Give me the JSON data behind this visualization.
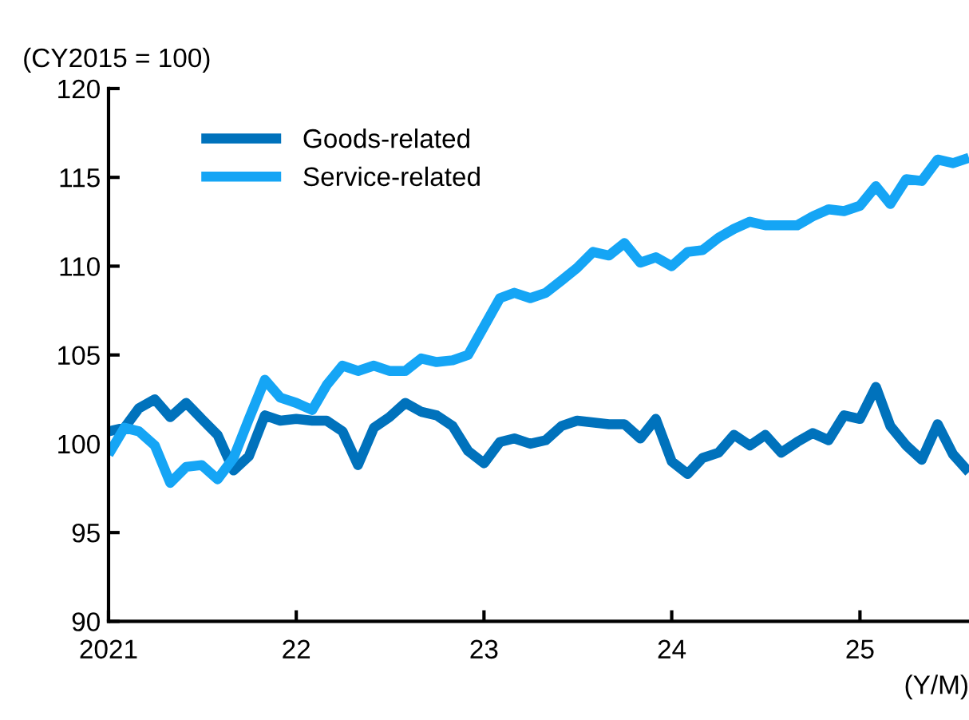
{
  "chart_data": {
    "type": "line",
    "xlabel": "(Y/M)",
    "ylabel": "(CY2015 = 100)",
    "x": [
      "2021-01",
      "2021-02",
      "2021-03",
      "2021-04",
      "2021-05",
      "2021-06",
      "2021-07",
      "2021-08",
      "2021-09",
      "2021-10",
      "2021-11",
      "2021-12",
      "2022-01",
      "2022-02",
      "2022-03",
      "2022-04",
      "2022-05",
      "2022-06",
      "2022-07",
      "2022-08",
      "2022-09",
      "2022-10",
      "2022-11",
      "2022-12",
      "2023-01",
      "2023-02",
      "2023-03",
      "2023-04",
      "2023-05",
      "2023-06",
      "2023-07",
      "2023-08",
      "2023-09",
      "2023-10",
      "2023-11",
      "2023-12",
      "2024-01",
      "2024-02",
      "2024-03",
      "2024-04",
      "2024-05",
      "2024-06",
      "2024-07",
      "2024-08",
      "2024-09",
      "2024-10",
      "2024-11",
      "2024-12",
      "2025-01",
      "2025-02",
      "2025-03",
      "2025-04",
      "2025-05",
      "2025-06",
      "2025-07",
      "2025-08"
    ],
    "series": [
      {
        "name": "Goods-related",
        "color": "#0072bc",
        "values": [
          100.7,
          100.9,
          102.0,
          102.5,
          101.5,
          102.3,
          101.4,
          100.5,
          98.5,
          99.3,
          101.6,
          101.3,
          101.4,
          101.3,
          101.3,
          100.7,
          98.8,
          100.9,
          101.5,
          102.3,
          101.8,
          101.6,
          101.0,
          99.6,
          98.9,
          100.1,
          100.3,
          100.0,
          100.2,
          101.0,
          101.3,
          101.2,
          101.1,
          101.1,
          100.3,
          101.4,
          99.0,
          98.3,
          99.2,
          99.5,
          100.5,
          99.9,
          100.5,
          99.5,
          100.1,
          100.6,
          100.2,
          101.6,
          101.4,
          103.2,
          101.0,
          99.9,
          99.1,
          101.1,
          99.4,
          98.4
        ]
      },
      {
        "name": "Service-related",
        "color": "#15a5f5",
        "values": [
          99.4,
          100.9,
          100.7,
          99.9,
          97.8,
          98.7,
          98.8,
          98.0,
          99.2,
          101.4,
          103.6,
          102.6,
          102.3,
          101.9,
          103.3,
          104.4,
          104.1,
          104.4,
          104.1,
          104.1,
          104.8,
          104.6,
          104.7,
          105.0,
          106.6,
          108.2,
          108.5,
          108.2,
          108.5,
          109.2,
          109.9,
          110.8,
          110.6,
          111.3,
          110.2,
          110.5,
          110.0,
          110.8,
          110.9,
          111.6,
          112.1,
          112.5,
          112.3,
          112.3,
          112.3,
          112.8,
          113.2,
          113.1,
          113.4,
          114.5,
          113.5,
          114.9,
          114.8,
          116.0,
          115.8,
          116.1
        ]
      }
    ],
    "xlim": [
      "2021-01",
      "2025-08"
    ],
    "xticks": [
      {
        "value": "2021-01",
        "label": "2021"
      },
      {
        "value": "2022-01",
        "label": "22"
      },
      {
        "value": "2023-01",
        "label": "23"
      },
      {
        "value": "2024-01",
        "label": "24"
      },
      {
        "value": "2025-01",
        "label": "25"
      }
    ],
    "ylim": [
      90,
      120
    ],
    "yticks": [
      90,
      95,
      100,
      105,
      110,
      115,
      120
    ],
    "legend": "top left",
    "grid": false,
    "marker": "none",
    "line_style": "solid"
  }
}
